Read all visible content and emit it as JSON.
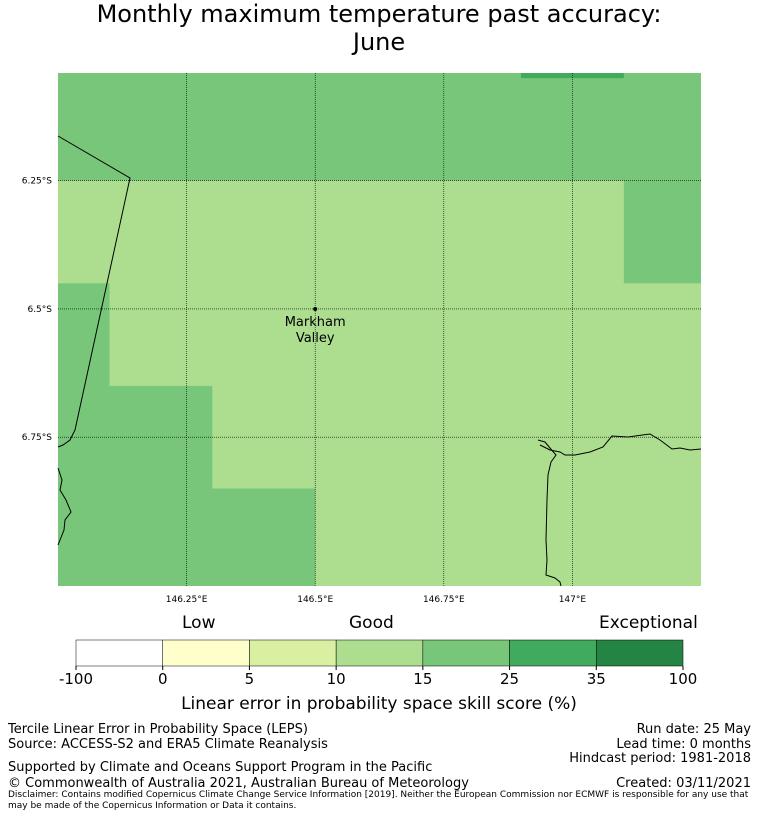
{
  "title": {
    "line1": "Monthly maximum temperature past accuracy:",
    "line2": "June"
  },
  "map": {
    "lon_range": [
      146.0,
      147.25
    ],
    "lat_range": [
      -6.04,
      -7.04
    ],
    "grid_lons": [
      146.25,
      146.5,
      146.75,
      147.0
    ],
    "grid_lats": [
      -6.25,
      -6.5,
      -6.75
    ],
    "lon_labels": [
      "146.25°E",
      "146.5°E",
      "146.75°E",
      "147°E"
    ],
    "lat_labels": [
      "6.25°S",
      "6.5°S",
      "6.75°S"
    ],
    "place": {
      "name_line1": "Markham",
      "name_line2": "Valley",
      "lon": 146.5,
      "lat": -6.5
    },
    "cells": [
      {
        "lon0": 146.0,
        "lon1": 147.25,
        "lat0": -6.04,
        "lat1": -6.25,
        "category": "15-25"
      },
      {
        "lon0": 146.0,
        "lon1": 147.25,
        "lat0": -6.25,
        "lat1": -7.04,
        "category": "10-15"
      },
      {
        "lon0": 147.1,
        "lon1": 147.25,
        "lat0": -6.25,
        "lat1": -6.45,
        "category": "15-25"
      },
      {
        "lon0": 146.0,
        "lon1": 146.1,
        "lat0": -6.45,
        "lat1": -6.65,
        "category": "15-25"
      },
      {
        "lon0": 146.0,
        "lon1": 146.3,
        "lat0": -6.65,
        "lat1": -6.85,
        "category": "15-25"
      },
      {
        "lon0": 146.0,
        "lon1": 146.5,
        "lat0": -6.85,
        "lat1": -7.04,
        "category": "15-25"
      },
      {
        "lon0": 146.9,
        "lon1": 147.1,
        "lat0": -6.04,
        "lat1": -6.05,
        "category": "25-35"
      }
    ]
  },
  "colorbar": {
    "categories_label": {
      "low": "Low",
      "good": "Good",
      "exceptional": "Exceptional"
    },
    "ticks": [
      "-100",
      "0",
      "5",
      "10",
      "15",
      "25",
      "35",
      "100"
    ],
    "colors": [
      "#ffffff",
      "#ffffcc",
      "#d9f0a3",
      "#addd8e",
      "#78c679",
      "#41ab5d",
      "#238443"
    ],
    "title": "Linear error in probability space skill score (%)"
  },
  "footer": {
    "left1": "Tercile Linear Error in Probability Space (LEPS)",
    "left2": "Source: ACCESS-S2 and ERA5 Climate Reanalysis",
    "left3": "Supported by Climate and Oceans Support Program in the Pacific",
    "left4": "© Commonwealth of Australia 2021, Australian Bureau of Meteorology",
    "right1": "Run date: 25 May",
    "right2": "Lead time: 0 months",
    "right3": "Hindcast period: 1981-2018",
    "right4": "Created: 03/11/2021",
    "disclaimer": "Disclaimer: Contains modified Copernicus Climate Change Service Information [2019]. Neither the European Commission nor ECMWF is responsible for any use that may be made of the Copernicus Information or Data it contains."
  }
}
